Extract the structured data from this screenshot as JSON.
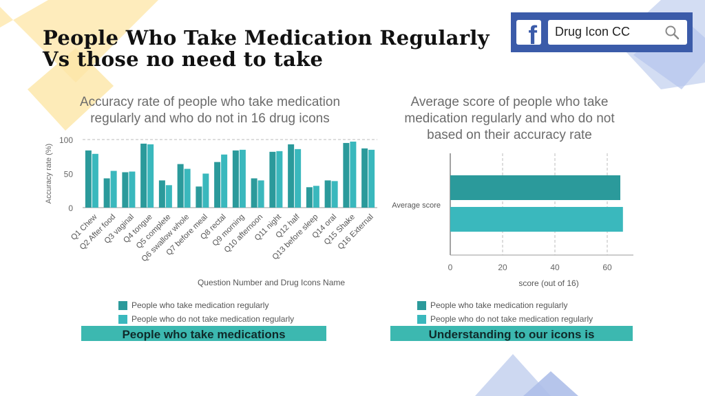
{
  "slide": {
    "title_line1": "People Who Take Medication Regularly",
    "title_line2": "Vs those no need to take"
  },
  "facebook": {
    "search_text": "Drug Icon CC",
    "icons": [
      "facebook-icon",
      "search-icon"
    ]
  },
  "colors": {
    "series_regular": "#2b9a9b",
    "series_not_regular": "#3ab8bd",
    "banner": "#3cb8b0",
    "deco_yellow": "#fde6a6",
    "deco_blue": "#c8d4f0"
  },
  "banners": {
    "left": "People who take medications",
    "right": "Understanding to our icons is"
  },
  "chart_data": [
    {
      "type": "bar",
      "title_line1": "Accuracy rate of people who take medication",
      "title_line2": "regularly and who do not in 16 drug icons",
      "xlabel": "Question Number and Drug Icons Name",
      "ylabel": "Accuracy rate (%)",
      "ylim": [
        0,
        100
      ],
      "yticks": [
        "0",
        "50",
        "100"
      ],
      "grid": "dashed top line",
      "legend_position": "bottom",
      "categories": [
        "Q1 Chew",
        "Q2 After food",
        "Q3 vaginal",
        "Q4 tongue",
        "Q5 complete",
        "Q6 swallow whole",
        "Q7 before meal",
        "Q8 rectal",
        "Q9 morning",
        "Q10 afternoon",
        "Q11 night",
        "Q12 half",
        "Q13 before sleep",
        "Q14 oral",
        "Q15 Shake",
        "Q16 External"
      ],
      "series": [
        {
          "name": "People who take medication regularly",
          "values": [
            84,
            43,
            52,
            94,
            40,
            64,
            31,
            67,
            84,
            43,
            82,
            93,
            30,
            40,
            95,
            87
          ]
        },
        {
          "name": "People who do not take medication regularly",
          "values": [
            79,
            54,
            53,
            93,
            33,
            57,
            50,
            78,
            85,
            40,
            83,
            86,
            32,
            39,
            97,
            85
          ]
        }
      ]
    },
    {
      "type": "bar",
      "orientation": "horizontal",
      "title_line1": "Average score of people who take",
      "title_line2": "medication regularly and who do not",
      "title_line3": "based on their accuracy rate",
      "xlabel": "score (out of 16)",
      "category_label": "Average score",
      "xlim": [
        0,
        70
      ],
      "xticks": [
        "0",
        "20",
        "40",
        "60"
      ],
      "grid": "dashed vertical lines",
      "legend_position": "bottom",
      "series": [
        {
          "name": "People who take medication regularly",
          "value": 65
        },
        {
          "name": "People who do not take medication regularly",
          "value": 66
        }
      ]
    }
  ]
}
